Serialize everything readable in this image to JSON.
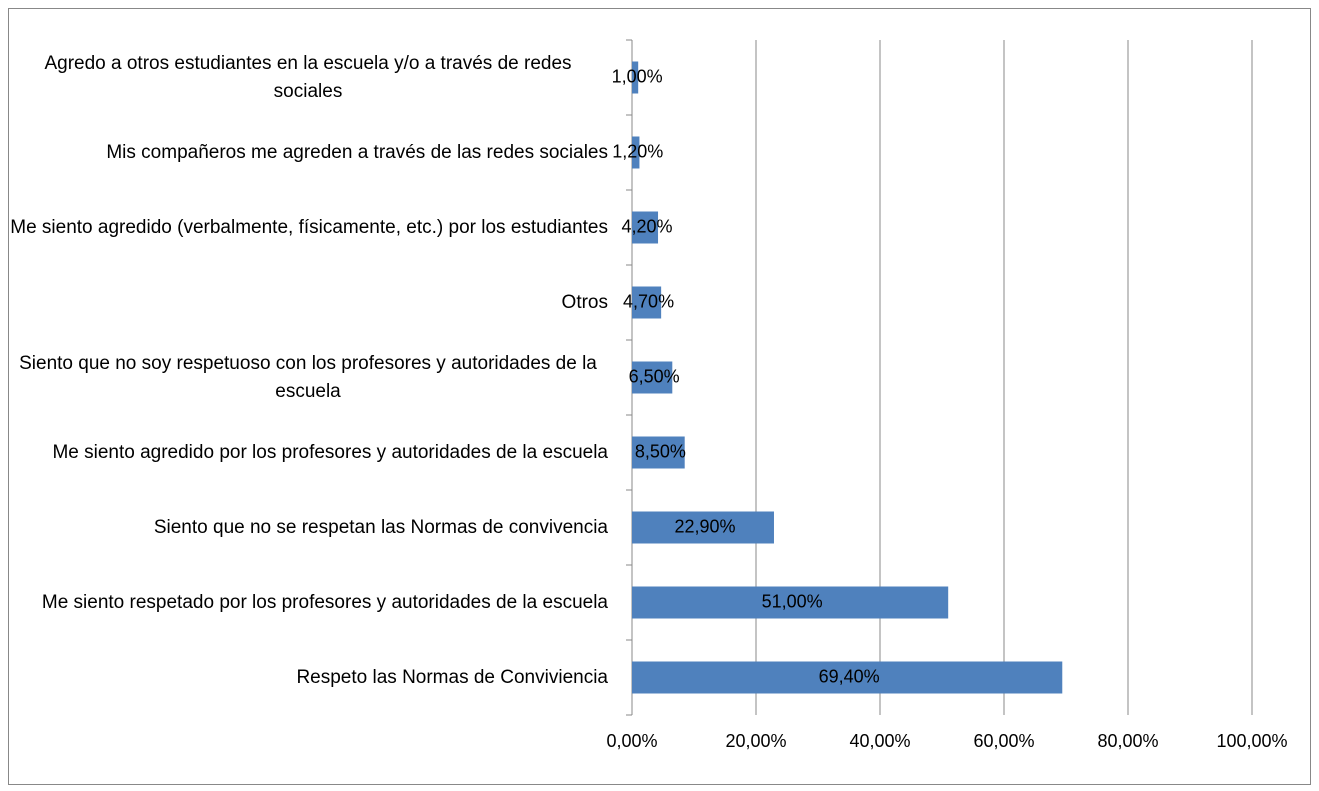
{
  "chart_data": {
    "type": "barh",
    "categories": [
      "Agredo a otros estudiantes en la escuela y/o a través de redes sociales",
      "Mis compañeros me agreden a través de las redes sociales",
      "Me siento agredido (verbalmente, físicamente, etc.) por los estudiantes",
      "Otros",
      "Siento que no soy respetuoso con los profesores y autoridades de la escuela",
      "Me siento agredido por los profesores y autoridades de la escuela",
      "Siento que no se respetan las Normas de convivencia",
      "Me siento respetado por los profesores y autoridades de la escuela",
      "Respeto las Normas de Conviviencia"
    ],
    "values": [
      1.0,
      1.2,
      4.2,
      4.7,
      6.5,
      8.5,
      22.9,
      51.0,
      69.4
    ],
    "value_labels": [
      "1,00%",
      "1,20%",
      "4,20%",
      "4,70%",
      "6,50%",
      "8,50%",
      "22,90%",
      "51,00%",
      "69,40%"
    ],
    "color": "#4f81bd",
    "xlim": [
      0,
      100
    ],
    "xticks": [
      {
        "value": 0,
        "label": "0,00%"
      },
      {
        "value": 20,
        "label": "20,00%"
      },
      {
        "value": 40,
        "label": "40,00%"
      },
      {
        "value": 60,
        "label": "60,00%"
      },
      {
        "value": 80,
        "label": "80,00%"
      },
      {
        "value": 100,
        "label": "100,00%"
      }
    ],
    "grid": true
  }
}
